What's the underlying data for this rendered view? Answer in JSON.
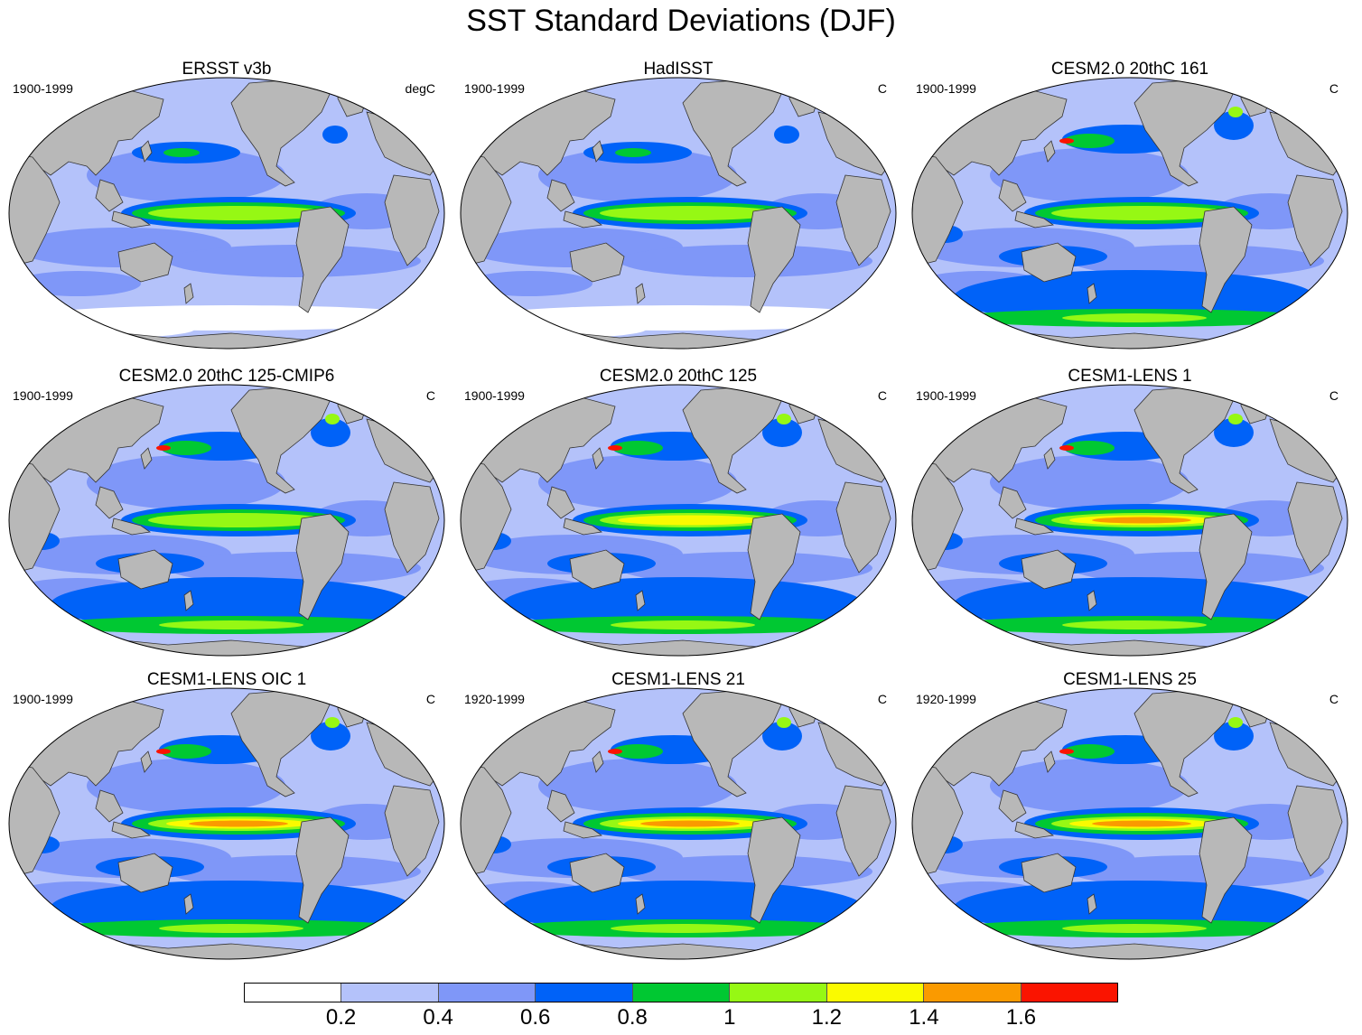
{
  "title": "SST Standard Deviations (DJF)",
  "colors": {
    "land": "#b8b8b8",
    "levels": [
      "#ffffff",
      "#b4c2fa",
      "#7f97f8",
      "#0062f8",
      "#00c832",
      "#96f814",
      "#fafa00",
      "#fa9a00",
      "#fa1400"
    ]
  },
  "colorbar": {
    "labels": [
      "0.2",
      "0.4",
      "0.6",
      "0.8",
      "1",
      "1.2",
      "1.4",
      "1.6"
    ]
  },
  "panels": [
    {
      "title": "ERSST v3b",
      "period": "1900-1999",
      "units": "degC",
      "nino_max_level": 5,
      "south_high": false,
      "white_south": true
    },
    {
      "title": "HadISST",
      "period": "1900-1999",
      "units": "C",
      "nino_max_level": 5,
      "south_high": false,
      "white_south": true
    },
    {
      "title": "CESM2.0 20thC 161",
      "period": "1900-1999",
      "units": "C",
      "nino_max_level": 5,
      "south_high": true,
      "white_south": false
    },
    {
      "title": "CESM2.0 20thC 125-CMIP6",
      "period": "1900-1999",
      "units": "C",
      "nino_max_level": 5,
      "south_high": true,
      "white_south": false
    },
    {
      "title": "CESM2.0 20thC 125",
      "period": "1900-1999",
      "units": "C",
      "nino_max_level": 6,
      "south_high": true,
      "white_south": false
    },
    {
      "title": "CESM1-LENS 1",
      "period": "1900-1999",
      "units": "C",
      "nino_max_level": 7,
      "south_high": true,
      "white_south": false
    },
    {
      "title": "CESM1-LENS OIC 1",
      "period": "1900-1999",
      "units": "C",
      "nino_max_level": 7,
      "south_high": true,
      "white_south": false
    },
    {
      "title": "CESM1-LENS 21",
      "period": "1920-1999",
      "units": "C",
      "nino_max_level": 7,
      "south_high": true,
      "white_south": false
    },
    {
      "title": "CESM1-LENS 25",
      "period": "1920-1999",
      "units": "C",
      "nino_max_level": 7,
      "south_high": true,
      "white_south": false
    }
  ]
}
